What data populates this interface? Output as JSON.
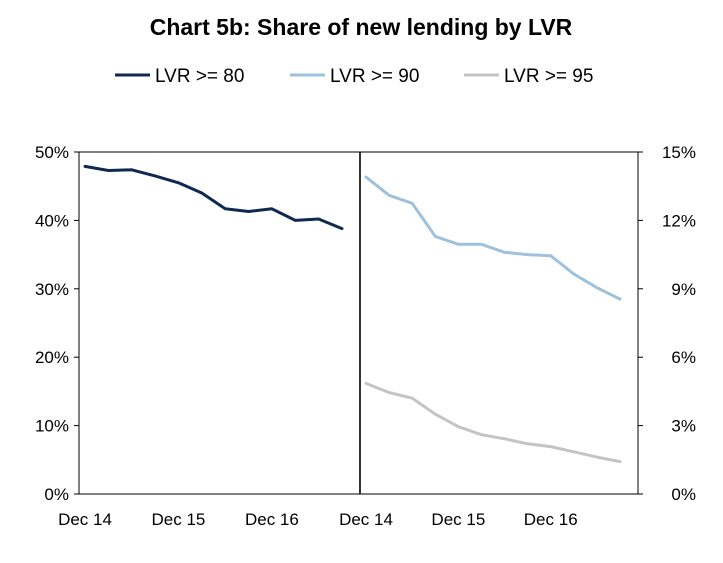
{
  "title": "Chart 5b: Share of new lending by LVR",
  "legend": [
    {
      "label": "LVR >= 80",
      "color": "#0f2a52"
    },
    {
      "label": "LVR >= 90",
      "color": "#9ec1dc"
    },
    {
      "label": "LVR >= 95",
      "color": "#c4c4c4"
    }
  ],
  "chart_data": {
    "type": "line",
    "title": "Chart 5b: Share of new lending by LVR",
    "grid": false,
    "legend_position": "top",
    "panels": [
      {
        "side": "left",
        "y_axis": "left",
        "ylim": [
          0,
          50
        ],
        "y_ticks": [
          "0%",
          "10%",
          "20%",
          "30%",
          "40%",
          "50%"
        ],
        "x_ticks": [
          "Dec 14",
          "Dec 15",
          "Dec 16"
        ],
        "x": [
          "Dec 14",
          "Mar 15",
          "Jun 15",
          "Sep 15",
          "Dec 15",
          "Mar 16",
          "Jun 16",
          "Sep 16",
          "Dec 16",
          "Mar 17",
          "Jun 17",
          "Sep 17"
        ],
        "series": [
          {
            "name": "LVR >= 80",
            "color": "#0f2a52",
            "values": [
              47.9,
              47.3,
              47.4,
              46.5,
              45.5,
              44.0,
              41.7,
              41.3,
              41.7,
              40.0,
              40.2,
              38.8
            ]
          }
        ]
      },
      {
        "side": "right",
        "y_axis": "right",
        "ylim": [
          0,
          15
        ],
        "y_ticks": [
          "0%",
          "3%",
          "6%",
          "9%",
          "12%",
          "15%"
        ],
        "x_ticks": [
          "Dec 14",
          "Dec 15",
          "Dec 16"
        ],
        "x": [
          "Dec 14",
          "Mar 15",
          "Jun 15",
          "Sep 15",
          "Dec 15",
          "Mar 16",
          "Jun 16",
          "Sep 16",
          "Dec 16",
          "Mar 17",
          "Jun 17",
          "Sep 17"
        ],
        "series": [
          {
            "name": "LVR >= 90",
            "color": "#9ec1dc",
            "values": [
              13.9,
              13.1,
              12.75,
              11.3,
              10.95,
              10.95,
              10.6,
              10.5,
              10.45,
              9.65,
              9.05,
              8.55
            ]
          },
          {
            "name": "LVR >= 95",
            "color": "#c4c4c4",
            "values": [
              4.85,
              4.45,
              4.2,
              3.5,
              2.95,
              2.6,
              2.42,
              2.2,
              2.08,
              1.85,
              1.62,
              1.42
            ]
          }
        ]
      }
    ]
  }
}
